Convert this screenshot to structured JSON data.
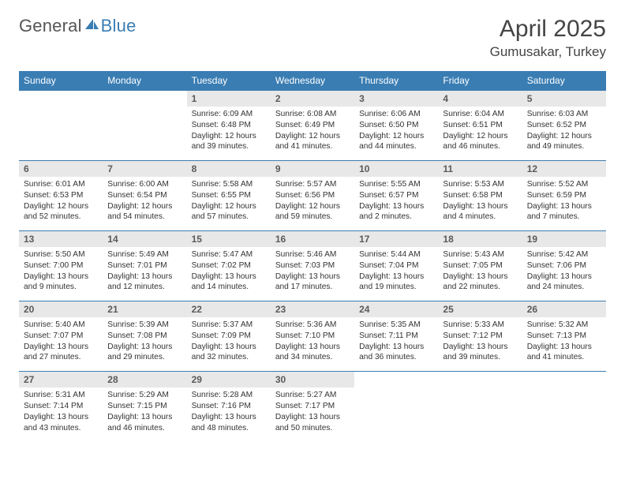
{
  "logo": {
    "general": "General",
    "blue": "Blue"
  },
  "header": {
    "title": "April 2025",
    "location": "Gumusakar, Turkey"
  },
  "colors": {
    "header_bg": "#3a7db3",
    "header_fg": "#ffffff",
    "daynum_bg": "#e8e8e8",
    "daynum_fg": "#5a5a5a",
    "rule": "#3a7db3",
    "text": "#333333",
    "background": "#ffffff"
  },
  "daynames": [
    "Sunday",
    "Monday",
    "Tuesday",
    "Wednesday",
    "Thursday",
    "Friday",
    "Saturday"
  ],
  "weeks": [
    [
      null,
      null,
      {
        "n": "1",
        "sr": "Sunrise: 6:09 AM",
        "ss": "Sunset: 6:48 PM",
        "dl1": "Daylight: 12 hours",
        "dl2": "and 39 minutes."
      },
      {
        "n": "2",
        "sr": "Sunrise: 6:08 AM",
        "ss": "Sunset: 6:49 PM",
        "dl1": "Daylight: 12 hours",
        "dl2": "and 41 minutes."
      },
      {
        "n": "3",
        "sr": "Sunrise: 6:06 AM",
        "ss": "Sunset: 6:50 PM",
        "dl1": "Daylight: 12 hours",
        "dl2": "and 44 minutes."
      },
      {
        "n": "4",
        "sr": "Sunrise: 6:04 AM",
        "ss": "Sunset: 6:51 PM",
        "dl1": "Daylight: 12 hours",
        "dl2": "and 46 minutes."
      },
      {
        "n": "5",
        "sr": "Sunrise: 6:03 AM",
        "ss": "Sunset: 6:52 PM",
        "dl1": "Daylight: 12 hours",
        "dl2": "and 49 minutes."
      }
    ],
    [
      {
        "n": "6",
        "sr": "Sunrise: 6:01 AM",
        "ss": "Sunset: 6:53 PM",
        "dl1": "Daylight: 12 hours",
        "dl2": "and 52 minutes."
      },
      {
        "n": "7",
        "sr": "Sunrise: 6:00 AM",
        "ss": "Sunset: 6:54 PM",
        "dl1": "Daylight: 12 hours",
        "dl2": "and 54 minutes."
      },
      {
        "n": "8",
        "sr": "Sunrise: 5:58 AM",
        "ss": "Sunset: 6:55 PM",
        "dl1": "Daylight: 12 hours",
        "dl2": "and 57 minutes."
      },
      {
        "n": "9",
        "sr": "Sunrise: 5:57 AM",
        "ss": "Sunset: 6:56 PM",
        "dl1": "Daylight: 12 hours",
        "dl2": "and 59 minutes."
      },
      {
        "n": "10",
        "sr": "Sunrise: 5:55 AM",
        "ss": "Sunset: 6:57 PM",
        "dl1": "Daylight: 13 hours",
        "dl2": "and 2 minutes."
      },
      {
        "n": "11",
        "sr": "Sunrise: 5:53 AM",
        "ss": "Sunset: 6:58 PM",
        "dl1": "Daylight: 13 hours",
        "dl2": "and 4 minutes."
      },
      {
        "n": "12",
        "sr": "Sunrise: 5:52 AM",
        "ss": "Sunset: 6:59 PM",
        "dl1": "Daylight: 13 hours",
        "dl2": "and 7 minutes."
      }
    ],
    [
      {
        "n": "13",
        "sr": "Sunrise: 5:50 AM",
        "ss": "Sunset: 7:00 PM",
        "dl1": "Daylight: 13 hours",
        "dl2": "and 9 minutes."
      },
      {
        "n": "14",
        "sr": "Sunrise: 5:49 AM",
        "ss": "Sunset: 7:01 PM",
        "dl1": "Daylight: 13 hours",
        "dl2": "and 12 minutes."
      },
      {
        "n": "15",
        "sr": "Sunrise: 5:47 AM",
        "ss": "Sunset: 7:02 PM",
        "dl1": "Daylight: 13 hours",
        "dl2": "and 14 minutes."
      },
      {
        "n": "16",
        "sr": "Sunrise: 5:46 AM",
        "ss": "Sunset: 7:03 PM",
        "dl1": "Daylight: 13 hours",
        "dl2": "and 17 minutes."
      },
      {
        "n": "17",
        "sr": "Sunrise: 5:44 AM",
        "ss": "Sunset: 7:04 PM",
        "dl1": "Daylight: 13 hours",
        "dl2": "and 19 minutes."
      },
      {
        "n": "18",
        "sr": "Sunrise: 5:43 AM",
        "ss": "Sunset: 7:05 PM",
        "dl1": "Daylight: 13 hours",
        "dl2": "and 22 minutes."
      },
      {
        "n": "19",
        "sr": "Sunrise: 5:42 AM",
        "ss": "Sunset: 7:06 PM",
        "dl1": "Daylight: 13 hours",
        "dl2": "and 24 minutes."
      }
    ],
    [
      {
        "n": "20",
        "sr": "Sunrise: 5:40 AM",
        "ss": "Sunset: 7:07 PM",
        "dl1": "Daylight: 13 hours",
        "dl2": "and 27 minutes."
      },
      {
        "n": "21",
        "sr": "Sunrise: 5:39 AM",
        "ss": "Sunset: 7:08 PM",
        "dl1": "Daylight: 13 hours",
        "dl2": "and 29 minutes."
      },
      {
        "n": "22",
        "sr": "Sunrise: 5:37 AM",
        "ss": "Sunset: 7:09 PM",
        "dl1": "Daylight: 13 hours",
        "dl2": "and 32 minutes."
      },
      {
        "n": "23",
        "sr": "Sunrise: 5:36 AM",
        "ss": "Sunset: 7:10 PM",
        "dl1": "Daylight: 13 hours",
        "dl2": "and 34 minutes."
      },
      {
        "n": "24",
        "sr": "Sunrise: 5:35 AM",
        "ss": "Sunset: 7:11 PM",
        "dl1": "Daylight: 13 hours",
        "dl2": "and 36 minutes."
      },
      {
        "n": "25",
        "sr": "Sunrise: 5:33 AM",
        "ss": "Sunset: 7:12 PM",
        "dl1": "Daylight: 13 hours",
        "dl2": "and 39 minutes."
      },
      {
        "n": "26",
        "sr": "Sunrise: 5:32 AM",
        "ss": "Sunset: 7:13 PM",
        "dl1": "Daylight: 13 hours",
        "dl2": "and 41 minutes."
      }
    ],
    [
      {
        "n": "27",
        "sr": "Sunrise: 5:31 AM",
        "ss": "Sunset: 7:14 PM",
        "dl1": "Daylight: 13 hours",
        "dl2": "and 43 minutes."
      },
      {
        "n": "28",
        "sr": "Sunrise: 5:29 AM",
        "ss": "Sunset: 7:15 PM",
        "dl1": "Daylight: 13 hours",
        "dl2": "and 46 minutes."
      },
      {
        "n": "29",
        "sr": "Sunrise: 5:28 AM",
        "ss": "Sunset: 7:16 PM",
        "dl1": "Daylight: 13 hours",
        "dl2": "and 48 minutes."
      },
      {
        "n": "30",
        "sr": "Sunrise: 5:27 AM",
        "ss": "Sunset: 7:17 PM",
        "dl1": "Daylight: 13 hours",
        "dl2": "and 50 minutes."
      },
      null,
      null,
      null
    ]
  ]
}
